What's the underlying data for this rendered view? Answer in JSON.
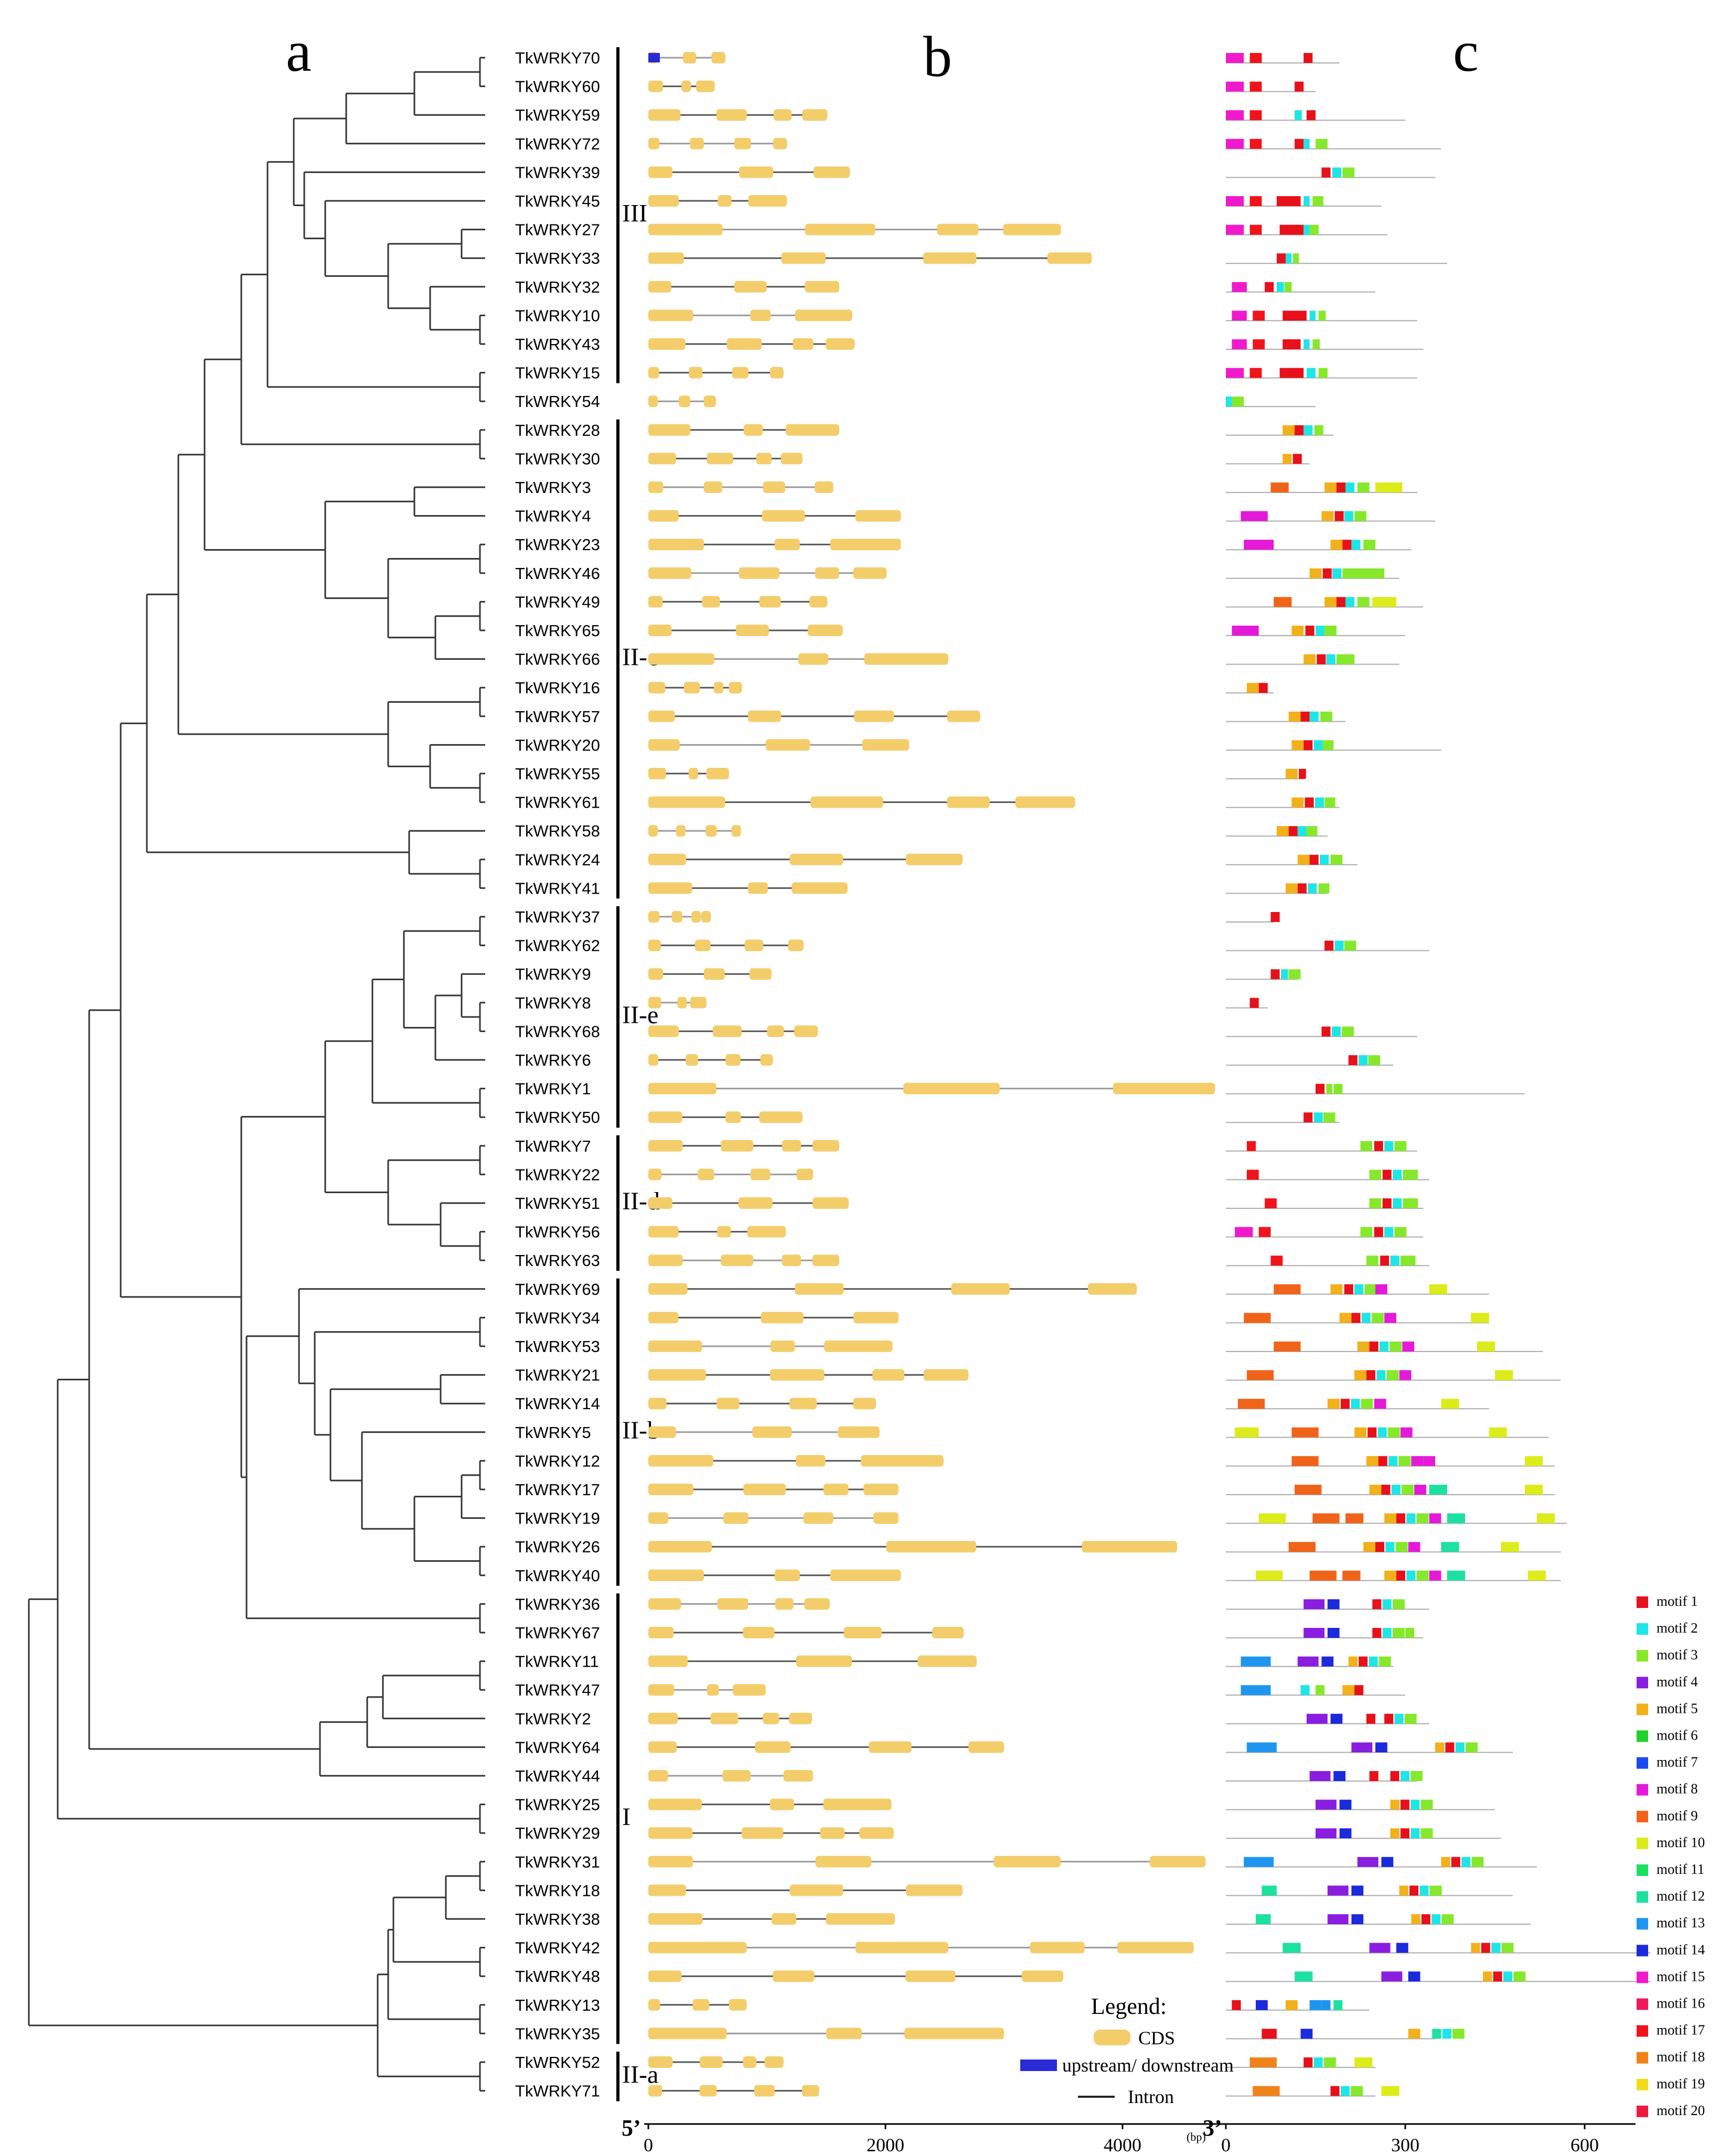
{
  "panels": {
    "a": "a",
    "b": "b",
    "c": "c"
  },
  "genes": [
    "TkWRKY70",
    "TkWRKY60",
    "TkWRKY59",
    "TkWRKY72",
    "TkWRKY39",
    "TkWRKY45",
    "TkWRKY27",
    "TkWRKY33",
    "TkWRKY32",
    "TkWRKY10",
    "TkWRKY43",
    "TkWRKY15",
    "TkWRKY54",
    "TkWRKY28",
    "TkWRKY30",
    "TkWRKY3",
    "TkWRKY4",
    "TkWRKY23",
    "TkWRKY46",
    "TkWRKY49",
    "TkWRKY65",
    "TkWRKY66",
    "TkWRKY16",
    "TkWRKY57",
    "TkWRKY20",
    "TkWRKY55",
    "TkWRKY61",
    "TkWRKY58",
    "TkWRKY24",
    "TkWRKY41",
    "TkWRKY37",
    "TkWRKY62",
    "TkWRKY9",
    "TkWRKY8",
    "TkWRKY68",
    "TkWRKY6",
    "TkWRKY1",
    "TkWRKY50",
    "TkWRKY7",
    "TkWRKY22",
    "TkWRKY51",
    "TkWRKY56",
    "TkWRKY63",
    "TkWRKY69",
    "TkWRKY34",
    "TkWRKY53",
    "TkWRKY21",
    "TkWRKY14",
    "TkWRKY5",
    "TkWRKY12",
    "TkWRKY17",
    "TkWRKY19",
    "TkWRKY26",
    "TkWRKY40",
    "TkWRKY36",
    "TkWRKY67",
    "TkWRKY11",
    "TkWRKY47",
    "TkWRKY2",
    "TkWRKY64",
    "TkWRKY44",
    "TkWRKY25",
    "TkWRKY29",
    "TkWRKY31",
    "TkWRKY18",
    "TkWRKY38",
    "TkWRKY42",
    "TkWRKY48",
    "TkWRKY13",
    "TkWRKY35",
    "TkWRKY52",
    "TkWRKY71"
  ],
  "groups": [
    {
      "label": "III",
      "first": 0,
      "last": 11
    },
    {
      "label": "II-c",
      "first": 13,
      "last": 29
    },
    {
      "label": "II-e",
      "first": 30,
      "last": 37
    },
    {
      "label": "II-d",
      "first": 38,
      "last": 42
    },
    {
      "label": "II-b",
      "first": 43,
      "last": 53
    },
    {
      "label": "I",
      "first": 54,
      "last": 69
    },
    {
      "label": "II-a",
      "first": 70,
      "last": 71
    }
  ],
  "gene_axis": {
    "ticks": [
      0,
      2000,
      4000
    ],
    "unit": "(bp)",
    "left_end": "5’"
  },
  "motif_axis": {
    "ticks": [
      0,
      300,
      600
    ],
    "left_end": "3’"
  },
  "legend": {
    "title": "Legend:",
    "items": [
      {
        "label": "CDS",
        "color": "#F4CD6B"
      },
      {
        "label": "upstream/ downstream",
        "color": "#2A2AD6"
      },
      {
        "label": "Intron",
        "color": "#222222"
      }
    ]
  },
  "motifs": [
    {
      "label": "motif 1",
      "color": "#E8101A"
    },
    {
      "label": "motif 2",
      "color": "#1EE6E6"
    },
    {
      "label": "motif 3",
      "color": "#86E82A"
    },
    {
      "label": "motif 4",
      "color": "#8A1EE0"
    },
    {
      "label": "motif 5",
      "color": "#F2B01A"
    },
    {
      "label": "motif 6",
      "color": "#22D02A"
    },
    {
      "label": "motif 7",
      "color": "#1A4AF0"
    },
    {
      "label": "motif 8",
      "color": "#E41AD8"
    },
    {
      "label": "motif 9",
      "color": "#F0641A"
    },
    {
      "label": "motif 10",
      "color": "#DCEC1A"
    },
    {
      "label": "motif 11",
      "color": "#1AE060"
    },
    {
      "label": "motif 12",
      "color": "#1EE0A0"
    },
    {
      "label": "motif 13",
      "color": "#1E96F0"
    },
    {
      "label": "motif 14",
      "color": "#1A2ADC"
    },
    {
      "label": "motif 15",
      "color": "#F01ACC"
    },
    {
      "label": "motif 16",
      "color": "#EC1A5A"
    },
    {
      "label": "motif 17",
      "color": "#F0141A"
    },
    {
      "label": "motif 18",
      "color": "#F0821A"
    },
    {
      "label": "motif 19",
      "color": "#F2DC1A"
    },
    {
      "label": "motif 20",
      "color": "#F01A40"
    }
  ]
}
